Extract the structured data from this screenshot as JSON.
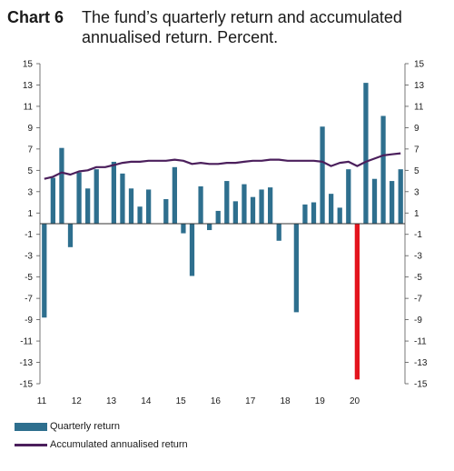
{
  "title": {
    "label": "Chart 6",
    "line1": "The fund’s quarterly return and accumulated",
    "line2": "annualised return. Percent."
  },
  "colors": {
    "bars": "#2e6f8e",
    "line": "#4b1f5c",
    "highlight": "#e3141d"
  },
  "legend": {
    "bar_label": "Quarterly return",
    "line_label": "Accumulated annualised return"
  },
  "chart_data": {
    "type": "bar",
    "ylim": [
      -15,
      15
    ],
    "yticks": [
      15,
      13,
      11,
      9,
      7,
      5,
      3,
      1,
      -1,
      -3,
      -5,
      -7,
      -9,
      -11,
      -13,
      -15
    ],
    "x_tick_labels": [
      "11",
      "12",
      "13",
      "14",
      "15",
      "16",
      "17",
      "18",
      "19",
      "20"
    ],
    "grid": false,
    "legend_position": "bottom-left",
    "series": [
      {
        "name": "Quarterly return",
        "type": "bar",
        "values": [
          -8.8,
          4.3,
          7.1,
          -2.2,
          4.8,
          3.3,
          5.1,
          0,
          5.8,
          4.7,
          3.3,
          1.6,
          3.2,
          0,
          2.3,
          5.3,
          -0.9,
          -4.9,
          3.5,
          -0.6,
          1.2,
          4.0,
          2.1,
          3.7,
          2.5,
          3.2,
          3.4,
          -1.6,
          0,
          -8.3,
          1.8,
          2.0,
          9.1,
          2.8,
          1.5,
          5.1,
          -14.6,
          13.2,
          4.2,
          10.1,
          4.0,
          5.1
        ],
        "highlight_index": 36
      },
      {
        "name": "Accumulated annualised return",
        "type": "line",
        "values": [
          4.2,
          4.4,
          4.8,
          4.6,
          4.9,
          5.0,
          5.3,
          5.3,
          5.5,
          5.7,
          5.8,
          5.8,
          5.9,
          5.9,
          5.9,
          6.0,
          5.9,
          5.6,
          5.7,
          5.6,
          5.6,
          5.7,
          5.7,
          5.8,
          5.9,
          5.9,
          6.0,
          6.0,
          5.9,
          5.9,
          5.9,
          5.9,
          5.8,
          5.4,
          5.7,
          5.8,
          5.4,
          5.8,
          6.1,
          6.4,
          6.5,
          6.6
        ]
      }
    ]
  }
}
